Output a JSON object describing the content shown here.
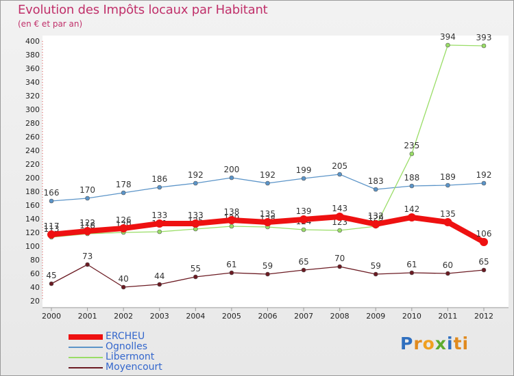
{
  "title": "Evolution des Impôts locaux par Habitant",
  "subtitle": "(en € et par an)",
  "logo_text": "Proxiti",
  "logo_letters": [
    "P",
    "r",
    "o",
    "x",
    "i",
    "ti"
  ],
  "chart_data": {
    "type": "line",
    "title": "Evolution des Impôts locaux par Habitant",
    "subtitle": "(en € et par an)",
    "xlabel": "",
    "ylabel": "",
    "ylim": [
      20,
      400
    ],
    "ystep": 20,
    "grid": false,
    "legend_position": "bottom-left",
    "x": [
      2000,
      2001,
      2002,
      2003,
      2004,
      2005,
      2006,
      2007,
      2008,
      2009,
      2010,
      2011,
      2012
    ],
    "yticks": [
      20,
      40,
      60,
      80,
      100,
      120,
      140,
      160,
      180,
      200,
      220,
      240,
      260,
      280,
      300,
      320,
      340,
      360,
      380,
      400
    ],
    "series": [
      {
        "name": "Moyencourt",
        "color": "#6b1a22",
        "values": [
          45,
          73,
          40,
          44,
          55,
          61,
          59,
          65,
          70,
          59,
          61,
          60,
          65
        ],
        "labels": [
          "45",
          "73",
          "40",
          "44",
          "55",
          "61",
          "59",
          "65",
          "70",
          "59",
          "61",
          "60",
          "65"
        ]
      },
      {
        "name": "Ognolles",
        "color": "#5b94c8",
        "values": [
          166,
          170,
          178,
          186,
          192,
          200,
          192,
          199,
          205,
          183,
          188,
          189,
          192
        ],
        "labels": [
          "166",
          "170",
          "178",
          "186",
          "192",
          "200",
          "192",
          "199",
          "205",
          "183",
          "188",
          "189",
          "192"
        ]
      },
      {
        "name": "Libermont",
        "color": "#99dd66",
        "values": [
          113,
          118,
          120,
          121,
          125,
          129,
          128,
          124,
          123,
          129,
          235,
          394,
          393
        ],
        "labels": [
          "113",
          "118",
          "120",
          "121",
          "125",
          "129",
          "128",
          "124",
          "123",
          "129",
          "235",
          "394",
          "393"
        ]
      },
      {
        "name": "ERCHEU",
        "color": "#ee1111",
        "values": [
          117,
          122,
          126,
          133,
          133,
          138,
          135,
          139,
          143,
          132,
          142,
          135,
          106
        ],
        "labels": [
          "117",
          "122",
          "126",
          "133",
          "133",
          "138",
          "135",
          "139",
          "143",
          "132",
          "142",
          "135",
          "106"
        ]
      }
    ],
    "legend": [
      "ERCHEU",
      "Ognolles",
      "Libermont",
      "Moyencourt"
    ]
  }
}
